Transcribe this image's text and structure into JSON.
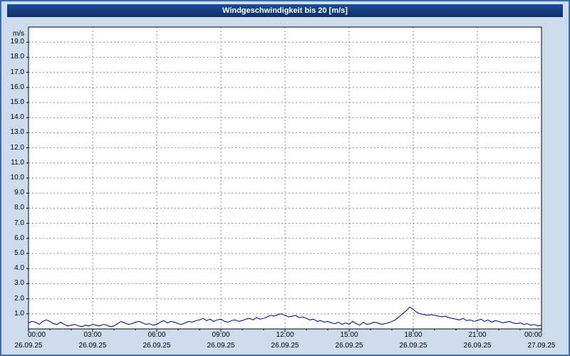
{
  "title": "Windgeschwindigkeit bis 20 [m/s]",
  "colors": {
    "background": "#ccdcec",
    "titlebar_top": "#1c4d97",
    "titlebar_bottom": "#0d2f66",
    "frame_border": "#3a6ea5",
    "plot_background": "#ffffff",
    "plot_border": "#000000",
    "label_color": "#000000"
  },
  "chart_data": {
    "type": "line",
    "title": "Windgeschwindigkeit bis 20 [m/s]",
    "xlabel": "",
    "ylabel": "m/s",
    "ylim": [
      0,
      20
    ],
    "xlim": [
      0,
      24
    ],
    "grid": true,
    "grid_color": "#8a8a8a",
    "line_color": "#000080",
    "legend": "none",
    "y_ticks": [
      "19.0",
      "18.0",
      "17.0",
      "16.0",
      "15.0",
      "14.0",
      "13.0",
      "12.0",
      "11.0",
      "10.0",
      "9.0",
      "8.0",
      "7.0",
      "6.0",
      "5.0",
      "4.0",
      "3.0",
      "2.0",
      "1.0"
    ],
    "x_ticks": [
      {
        "h": 0,
        "time": "00:00",
        "date": "26.09.25"
      },
      {
        "h": 3,
        "time": "03:00",
        "date": "26.09.25"
      },
      {
        "h": 6,
        "time": "06:00",
        "date": "26.09.25"
      },
      {
        "h": 9,
        "time": "09:00",
        "date": "26.09.25"
      },
      {
        "h": 12,
        "time": "12:00",
        "date": "26.09.25"
      },
      {
        "h": 15,
        "time": "15:00",
        "date": "26.09.25"
      },
      {
        "h": 18,
        "time": "18:00",
        "date": "26.09.25"
      },
      {
        "h": 21,
        "time": "21:00",
        "date": "26.09.25"
      },
      {
        "h": 24,
        "time": "00:00",
        "date": "27.09.25"
      }
    ],
    "x_step_hours": 0.1666667,
    "values": [
      0.4,
      0.5,
      0.45,
      0.3,
      0.5,
      0.6,
      0.5,
      0.35,
      0.3,
      0.45,
      0.3,
      0.2,
      0.25,
      0.3,
      0.2,
      0.15,
      0.25,
      0.2,
      0.3,
      0.25,
      0.2,
      0.3,
      0.25,
      0.15,
      0.2,
      0.35,
      0.5,
      0.4,
      0.3,
      0.35,
      0.45,
      0.5,
      0.4,
      0.3,
      0.35,
      0.25,
      0.3,
      0.45,
      0.55,
      0.4,
      0.5,
      0.45,
      0.35,
      0.3,
      0.4,
      0.5,
      0.45,
      0.55,
      0.6,
      0.7,
      0.55,
      0.65,
      0.5,
      0.6,
      0.65,
      0.5,
      0.45,
      0.55,
      0.6,
      0.5,
      0.55,
      0.65,
      0.7,
      0.6,
      0.75,
      0.65,
      0.7,
      0.8,
      0.9,
      0.85,
      0.95,
      1.0,
      0.9,
      0.8,
      0.85,
      0.9,
      0.75,
      0.8,
      0.7,
      0.6,
      0.65,
      0.5,
      0.55,
      0.45,
      0.5,
      0.4,
      0.35,
      0.45,
      0.3,
      0.4,
      0.3,
      0.5,
      0.35,
      0.25,
      0.45,
      0.3,
      0.35,
      0.45,
      0.4,
      0.3,
      0.35,
      0.4,
      0.5,
      0.6,
      0.8,
      1.0,
      1.2,
      1.45,
      1.3,
      1.1,
      1.0,
      0.95,
      0.9,
      0.95,
      0.9,
      0.85,
      0.8,
      0.85,
      0.75,
      0.7,
      0.65,
      0.6,
      0.7,
      0.55,
      0.6,
      0.5,
      0.55,
      0.65,
      0.5,
      0.6,
      0.45,
      0.55,
      0.5,
      0.4,
      0.45,
      0.5,
      0.4,
      0.35,
      0.4,
      0.3,
      0.35,
      0.25,
      0.3,
      0.2,
      0.25
    ]
  }
}
